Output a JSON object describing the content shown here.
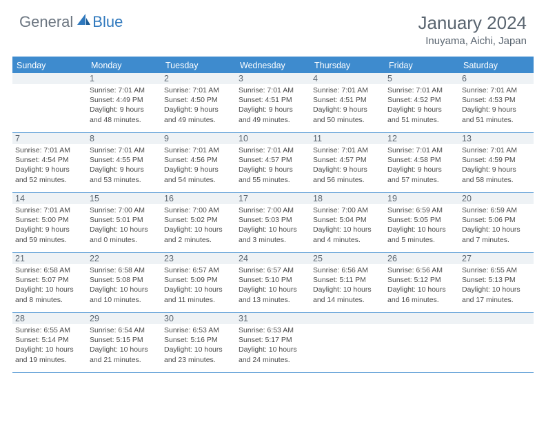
{
  "logo": {
    "general": "General",
    "blue": "Blue"
  },
  "title": "January 2024",
  "location": "Inuyama, Aichi, Japan",
  "colors": {
    "header_bar": "#3e8bce",
    "daynum_bg": "#eef2f5",
    "text_muted": "#5a6570",
    "text_body": "#4a4a4a",
    "logo_gray": "#6b7580",
    "logo_blue": "#2f78bd"
  },
  "weekdays": [
    "Sunday",
    "Monday",
    "Tuesday",
    "Wednesday",
    "Thursday",
    "Friday",
    "Saturday"
  ],
  "weeks": [
    [
      {
        "num": "",
        "lines": []
      },
      {
        "num": "1",
        "lines": [
          "Sunrise: 7:01 AM",
          "Sunset: 4:49 PM",
          "Daylight: 9 hours",
          "and 48 minutes."
        ]
      },
      {
        "num": "2",
        "lines": [
          "Sunrise: 7:01 AM",
          "Sunset: 4:50 PM",
          "Daylight: 9 hours",
          "and 49 minutes."
        ]
      },
      {
        "num": "3",
        "lines": [
          "Sunrise: 7:01 AM",
          "Sunset: 4:51 PM",
          "Daylight: 9 hours",
          "and 49 minutes."
        ]
      },
      {
        "num": "4",
        "lines": [
          "Sunrise: 7:01 AM",
          "Sunset: 4:51 PM",
          "Daylight: 9 hours",
          "and 50 minutes."
        ]
      },
      {
        "num": "5",
        "lines": [
          "Sunrise: 7:01 AM",
          "Sunset: 4:52 PM",
          "Daylight: 9 hours",
          "and 51 minutes."
        ]
      },
      {
        "num": "6",
        "lines": [
          "Sunrise: 7:01 AM",
          "Sunset: 4:53 PM",
          "Daylight: 9 hours",
          "and 51 minutes."
        ]
      }
    ],
    [
      {
        "num": "7",
        "lines": [
          "Sunrise: 7:01 AM",
          "Sunset: 4:54 PM",
          "Daylight: 9 hours",
          "and 52 minutes."
        ]
      },
      {
        "num": "8",
        "lines": [
          "Sunrise: 7:01 AM",
          "Sunset: 4:55 PM",
          "Daylight: 9 hours",
          "and 53 minutes."
        ]
      },
      {
        "num": "9",
        "lines": [
          "Sunrise: 7:01 AM",
          "Sunset: 4:56 PM",
          "Daylight: 9 hours",
          "and 54 minutes."
        ]
      },
      {
        "num": "10",
        "lines": [
          "Sunrise: 7:01 AM",
          "Sunset: 4:57 PM",
          "Daylight: 9 hours",
          "and 55 minutes."
        ]
      },
      {
        "num": "11",
        "lines": [
          "Sunrise: 7:01 AM",
          "Sunset: 4:57 PM",
          "Daylight: 9 hours",
          "and 56 minutes."
        ]
      },
      {
        "num": "12",
        "lines": [
          "Sunrise: 7:01 AM",
          "Sunset: 4:58 PM",
          "Daylight: 9 hours",
          "and 57 minutes."
        ]
      },
      {
        "num": "13",
        "lines": [
          "Sunrise: 7:01 AM",
          "Sunset: 4:59 PM",
          "Daylight: 9 hours",
          "and 58 minutes."
        ]
      }
    ],
    [
      {
        "num": "14",
        "lines": [
          "Sunrise: 7:01 AM",
          "Sunset: 5:00 PM",
          "Daylight: 9 hours",
          "and 59 minutes."
        ]
      },
      {
        "num": "15",
        "lines": [
          "Sunrise: 7:00 AM",
          "Sunset: 5:01 PM",
          "Daylight: 10 hours",
          "and 0 minutes."
        ]
      },
      {
        "num": "16",
        "lines": [
          "Sunrise: 7:00 AM",
          "Sunset: 5:02 PM",
          "Daylight: 10 hours",
          "and 2 minutes."
        ]
      },
      {
        "num": "17",
        "lines": [
          "Sunrise: 7:00 AM",
          "Sunset: 5:03 PM",
          "Daylight: 10 hours",
          "and 3 minutes."
        ]
      },
      {
        "num": "18",
        "lines": [
          "Sunrise: 7:00 AM",
          "Sunset: 5:04 PM",
          "Daylight: 10 hours",
          "and 4 minutes."
        ]
      },
      {
        "num": "19",
        "lines": [
          "Sunrise: 6:59 AM",
          "Sunset: 5:05 PM",
          "Daylight: 10 hours",
          "and 5 minutes."
        ]
      },
      {
        "num": "20",
        "lines": [
          "Sunrise: 6:59 AM",
          "Sunset: 5:06 PM",
          "Daylight: 10 hours",
          "and 7 minutes."
        ]
      }
    ],
    [
      {
        "num": "21",
        "lines": [
          "Sunrise: 6:58 AM",
          "Sunset: 5:07 PM",
          "Daylight: 10 hours",
          "and 8 minutes."
        ]
      },
      {
        "num": "22",
        "lines": [
          "Sunrise: 6:58 AM",
          "Sunset: 5:08 PM",
          "Daylight: 10 hours",
          "and 10 minutes."
        ]
      },
      {
        "num": "23",
        "lines": [
          "Sunrise: 6:57 AM",
          "Sunset: 5:09 PM",
          "Daylight: 10 hours",
          "and 11 minutes."
        ]
      },
      {
        "num": "24",
        "lines": [
          "Sunrise: 6:57 AM",
          "Sunset: 5:10 PM",
          "Daylight: 10 hours",
          "and 13 minutes."
        ]
      },
      {
        "num": "25",
        "lines": [
          "Sunrise: 6:56 AM",
          "Sunset: 5:11 PM",
          "Daylight: 10 hours",
          "and 14 minutes."
        ]
      },
      {
        "num": "26",
        "lines": [
          "Sunrise: 6:56 AM",
          "Sunset: 5:12 PM",
          "Daylight: 10 hours",
          "and 16 minutes."
        ]
      },
      {
        "num": "27",
        "lines": [
          "Sunrise: 6:55 AM",
          "Sunset: 5:13 PM",
          "Daylight: 10 hours",
          "and 17 minutes."
        ]
      }
    ],
    [
      {
        "num": "28",
        "lines": [
          "Sunrise: 6:55 AM",
          "Sunset: 5:14 PM",
          "Daylight: 10 hours",
          "and 19 minutes."
        ]
      },
      {
        "num": "29",
        "lines": [
          "Sunrise: 6:54 AM",
          "Sunset: 5:15 PM",
          "Daylight: 10 hours",
          "and 21 minutes."
        ]
      },
      {
        "num": "30",
        "lines": [
          "Sunrise: 6:53 AM",
          "Sunset: 5:16 PM",
          "Daylight: 10 hours",
          "and 23 minutes."
        ]
      },
      {
        "num": "31",
        "lines": [
          "Sunrise: 6:53 AM",
          "Sunset: 5:17 PM",
          "Daylight: 10 hours",
          "and 24 minutes."
        ]
      },
      {
        "num": "",
        "lines": []
      },
      {
        "num": "",
        "lines": []
      },
      {
        "num": "",
        "lines": []
      }
    ]
  ]
}
